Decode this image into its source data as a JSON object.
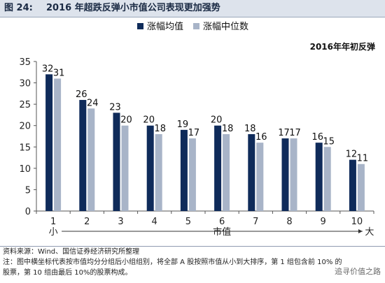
{
  "header": {
    "figure_label": "图 24:",
    "title": "2016 年超跌反弹小市值公司表现更加强势"
  },
  "chart_data": {
    "type": "bar",
    "annotation": "2016年年初反弹",
    "categories": [
      "1",
      "2",
      "3",
      "4",
      "5",
      "6",
      "7",
      "8",
      "9",
      "10"
    ],
    "series": [
      {
        "name": "涨幅均值",
        "color": "#0f2b5a",
        "values": [
          32,
          26,
          23,
          20,
          19,
          20,
          18,
          17,
          16,
          12
        ]
      },
      {
        "name": "涨幅中位数",
        "color": "#a8b4c8",
        "values": [
          31,
          24,
          20,
          18,
          17,
          18,
          16,
          17,
          15,
          11
        ]
      }
    ],
    "ylim": [
      0,
      35
    ],
    "yticks": [
      0,
      5,
      10,
      15,
      20,
      25,
      30,
      35
    ],
    "xlabel": "市值",
    "x_left_label": "小",
    "x_right_label": "大",
    "legend_position": "top",
    "grid": false
  },
  "notes": {
    "source": "资料来源：Wind、国信证券经济研究所整理",
    "note_line1": "注：图中横坐标代表按市值均分分组后小组组别，将全部 A 股按照市值从小到大排序，第 1 组包含前 10% 的",
    "note_line2": "股票，第 10 组由最后 10%的股票构成。"
  },
  "watermark": "追寻价值之路"
}
